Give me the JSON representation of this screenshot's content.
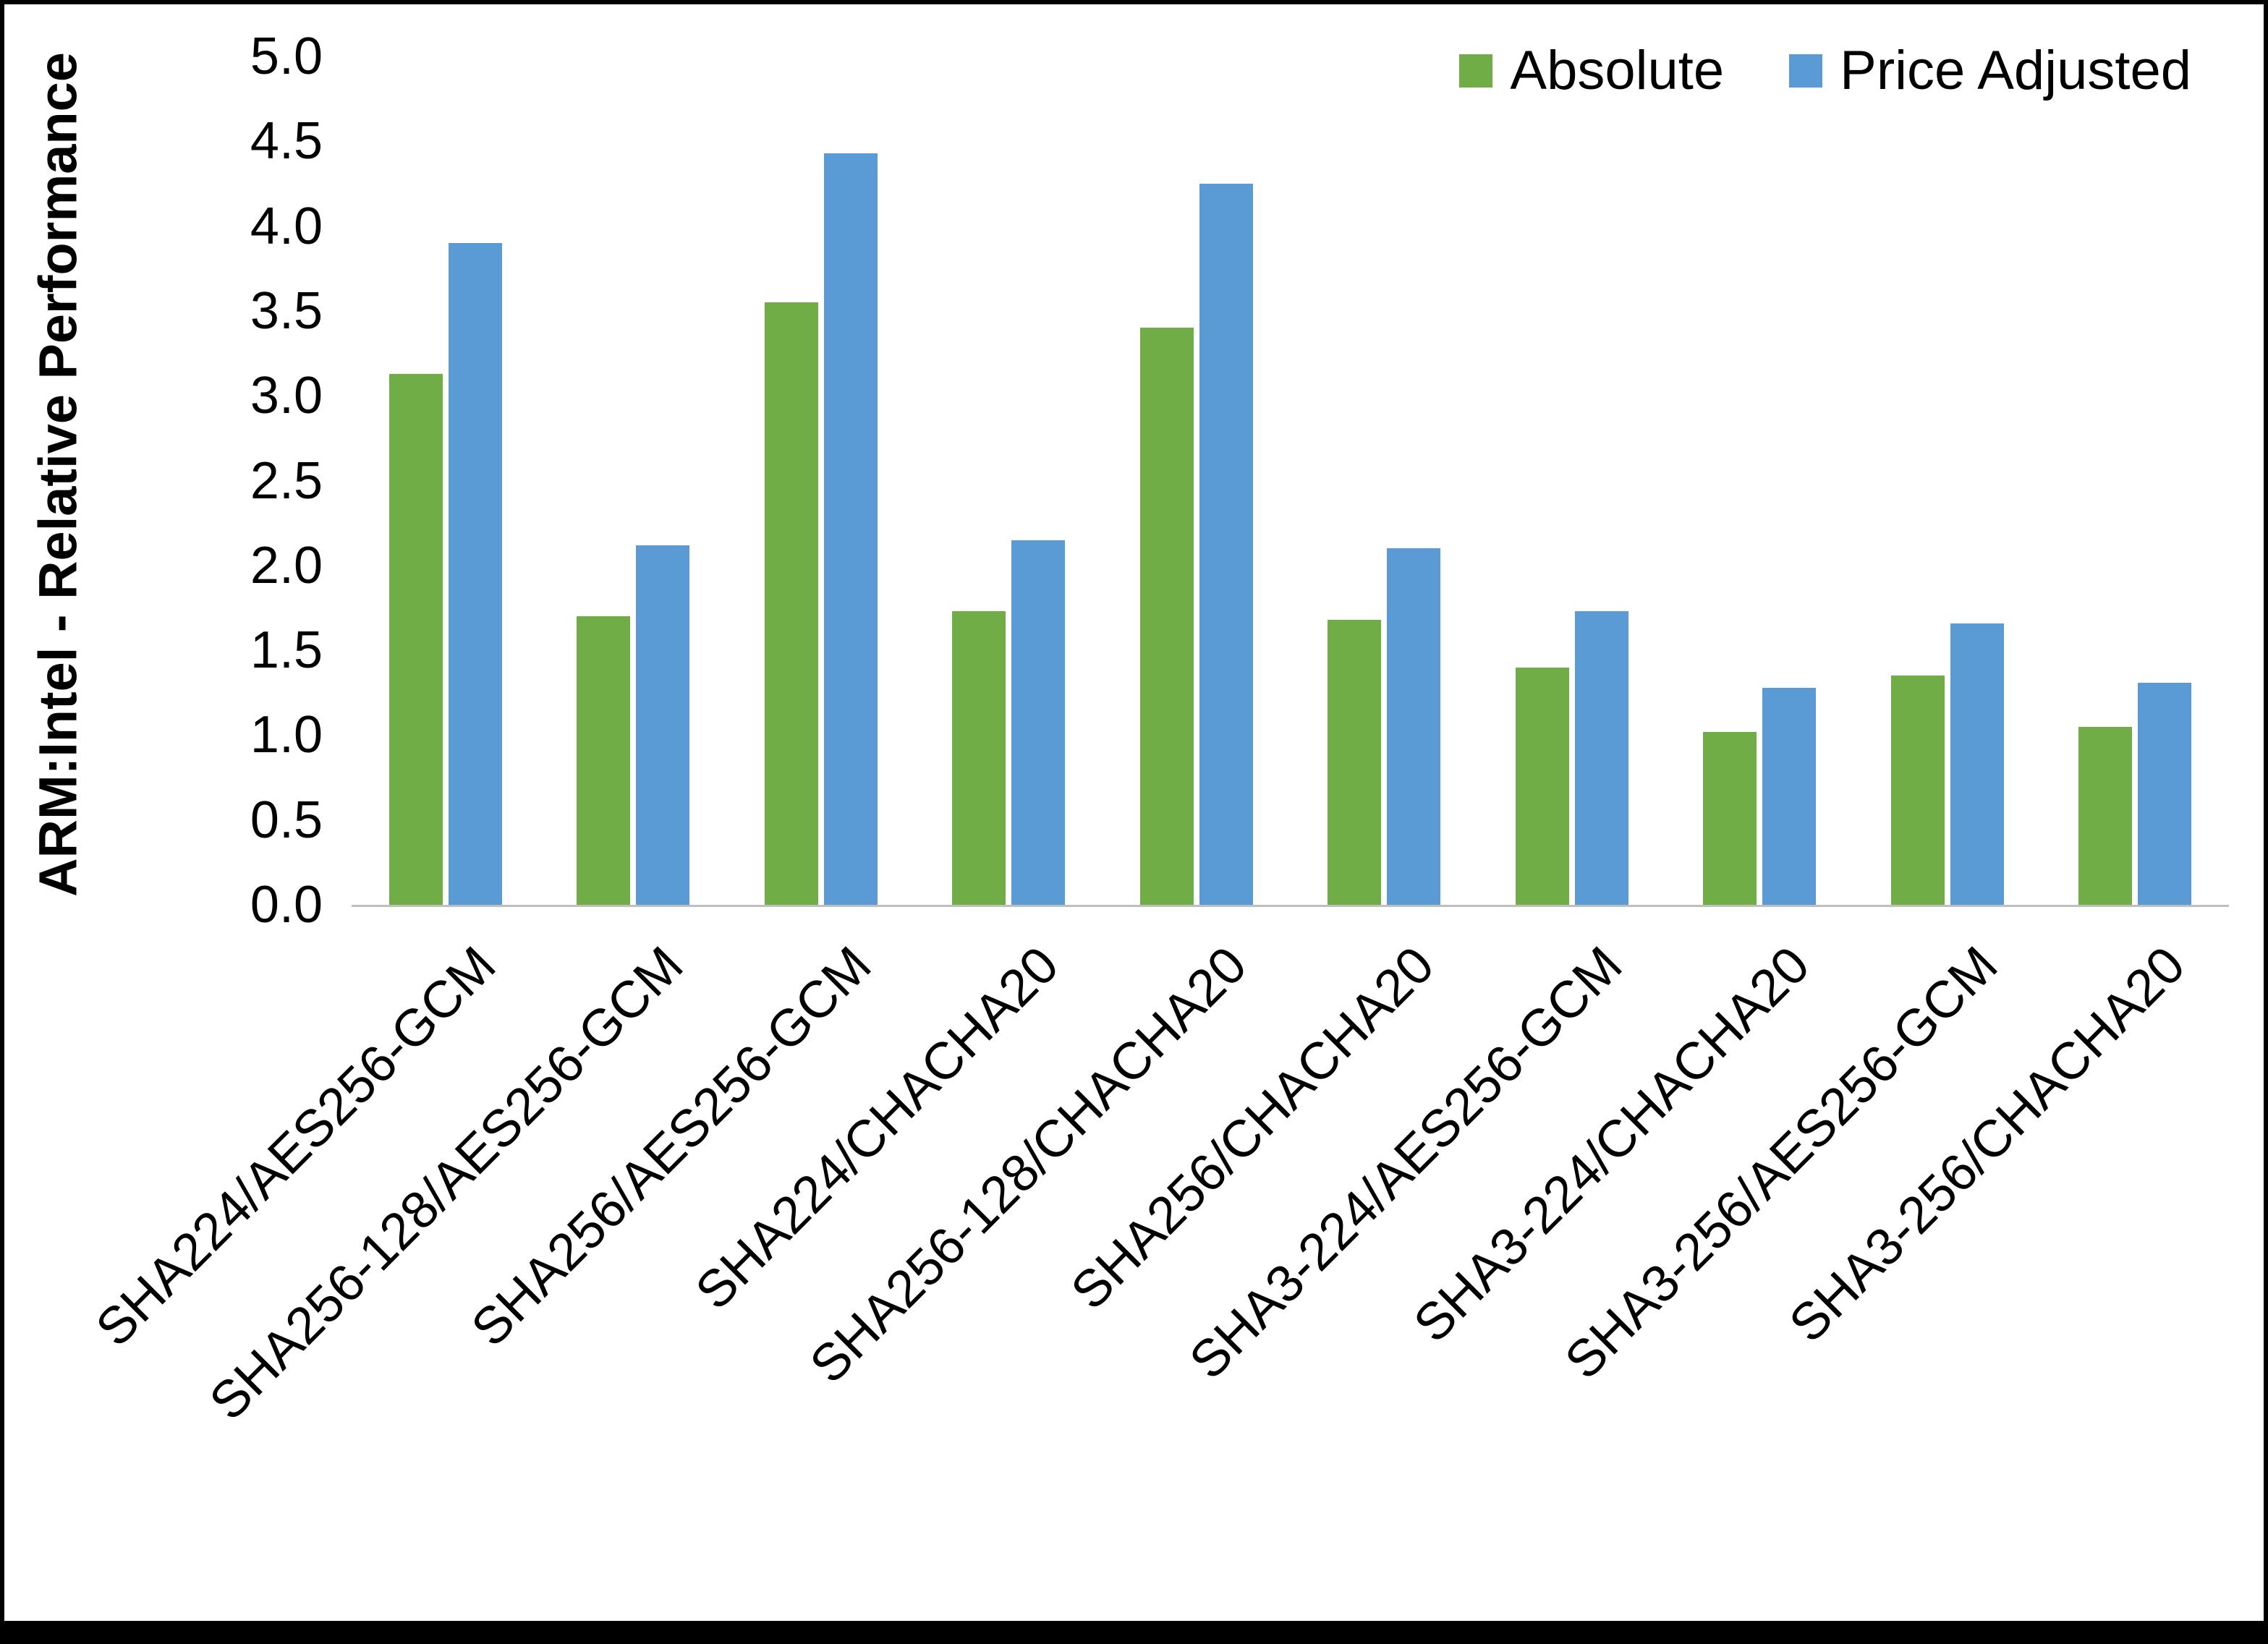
{
  "chart_data": {
    "type": "bar",
    "title": "",
    "xlabel": "",
    "ylabel": "ARM:Intel - Relative Performance",
    "ylim": [
      0,
      5
    ],
    "ytick_step": 0.5,
    "yticks": [
      "0.0",
      "0.5",
      "1.0",
      "1.5",
      "2.0",
      "2.5",
      "3.0",
      "3.5",
      "4.0",
      "4.5",
      "5.0"
    ],
    "grid": false,
    "legend_position": "top-right",
    "categories": [
      "SHA224/AES256-GCM",
      "SHA256-128/AES256-GCM",
      "SHA256/AES256-GCM",
      "SHA224/CHACHA20",
      "SHA256-128/CHACHA20",
      "SHA256/CHACHA20",
      "SHA3-224/AES256-GCM",
      "SHA3-224/CHACHA20",
      "SHA3-256/AES256-GCM",
      "SHA3-256/CHACHA20"
    ],
    "series": [
      {
        "name": "Absolute",
        "color": "#70AD47",
        "values": [
          3.13,
          1.7,
          3.55,
          1.73,
          3.4,
          1.68,
          1.4,
          1.02,
          1.35,
          1.05
        ]
      },
      {
        "name": "Price Adjusted",
        "color": "#5B9BD5",
        "values": [
          3.9,
          2.12,
          4.43,
          2.15,
          4.25,
          2.1,
          1.73,
          1.28,
          1.66,
          1.31
        ]
      }
    ],
    "colors": {
      "baseline": "#bfbfbf",
      "text": "#000000"
    }
  }
}
